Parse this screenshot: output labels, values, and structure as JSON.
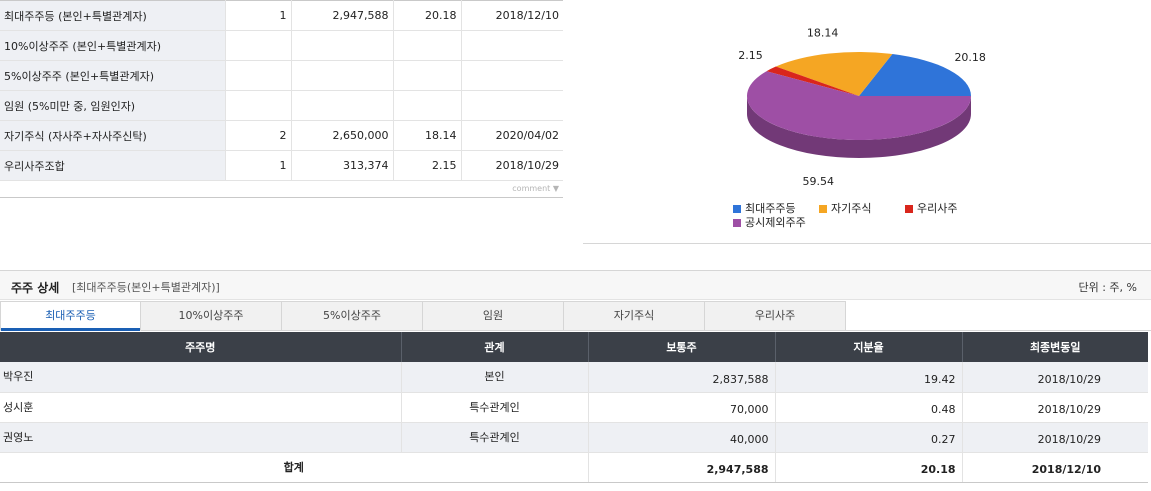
{
  "summary": {
    "rows": [
      {
        "label": "최대주주등 (본인+특별관계자)",
        "count": "1",
        "shares": "2,947,588",
        "ratio": "20.18",
        "date": "2018/12/10"
      },
      {
        "label": "10%이상주주 (본인+특별관계자)",
        "count": "",
        "shares": "",
        "ratio": "",
        "date": ""
      },
      {
        "label": "5%이상주주 (본인+특별관계자)",
        "count": "",
        "shares": "",
        "ratio": "",
        "date": ""
      },
      {
        "label": "임원 (5%미만 중, 임원인자)",
        "count": "",
        "shares": "",
        "ratio": "",
        "date": ""
      },
      {
        "label": "자기주식 (자사주+자사주신탁)",
        "count": "2",
        "shares": "2,650,000",
        "ratio": "18.14",
        "date": "2020/04/02"
      },
      {
        "label": "우리사주조합",
        "count": "1",
        "shares": "313,374",
        "ratio": "2.15",
        "date": "2018/10/29"
      }
    ],
    "comment_label": "comment"
  },
  "chart_data": {
    "type": "pie",
    "slices": [
      {
        "name": "최대주주등",
        "value": 20.18,
        "label": "20.18",
        "color": "#2f74d9"
      },
      {
        "name": "자기주식",
        "value": 18.14,
        "label": "18.14",
        "color": "#f5a623"
      },
      {
        "name": "우리사주",
        "value": 2.15,
        "label": "2.15",
        "color": "#d9261c"
      },
      {
        "name": "공시제외주주",
        "value": 59.54,
        "label": "59.54",
        "color": "#9e4fa5"
      }
    ],
    "legend": [
      "최대주주등",
      "자기주식",
      "우리사주",
      "공시제외주주"
    ],
    "legend_position": "bottom",
    "style": "3d"
  },
  "detail": {
    "title": "주주 상세",
    "subtitle": "[최대주주등(본인+특별관계자)]",
    "unit": "단위 : 주, %",
    "tabs": [
      "최대주주등",
      "10%이상주주",
      "5%이상주주",
      "임원",
      "자기주식",
      "우리사주"
    ],
    "active_tab": 0,
    "headers": [
      "주주명",
      "관계",
      "보통주",
      "지분율",
      "최종변동일"
    ],
    "rows": [
      {
        "name": "박우진",
        "relation": "본인",
        "shares": "2,837,588",
        "ratio": "19.42",
        "date": "2018/10/29"
      },
      {
        "name": "성시훈",
        "relation": "특수관계인",
        "shares": "70,000",
        "ratio": "0.48",
        "date": "2018/10/29"
      },
      {
        "name": "권영노",
        "relation": "특수관계인",
        "shares": "40,000",
        "ratio": "0.27",
        "date": "2018/10/29"
      }
    ],
    "total": {
      "label": "합계",
      "shares": "2,947,588",
      "ratio": "20.18",
      "date": "2018/12/10"
    }
  }
}
